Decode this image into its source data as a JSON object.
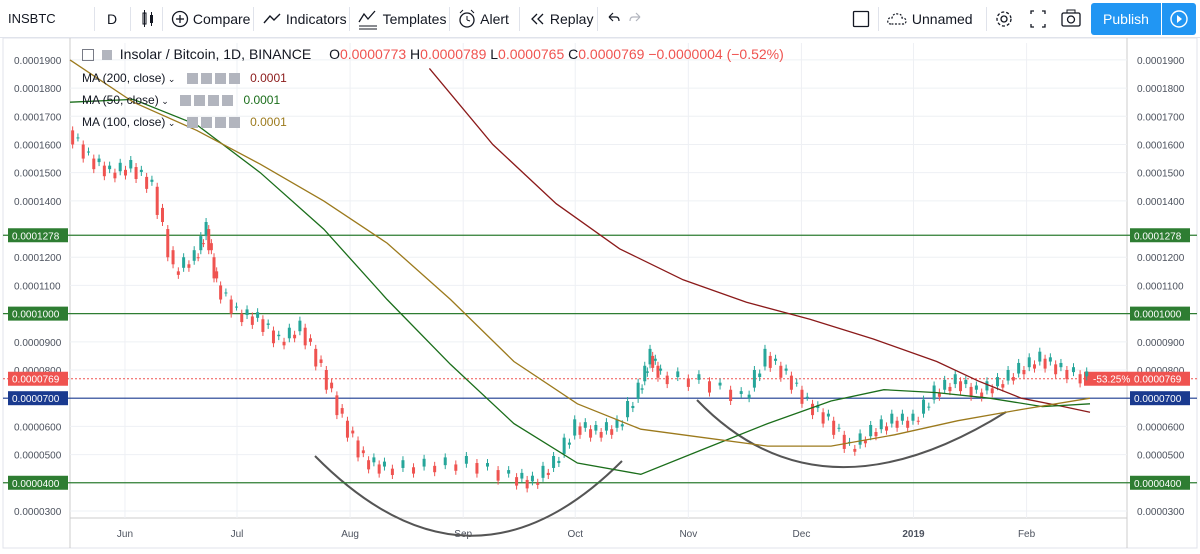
{
  "toolbar": {
    "symbol": "INSBTC",
    "interval": "D",
    "compare": "Compare",
    "indicators": "Indicators",
    "templates": "Templates",
    "alert": "Alert",
    "replay": "Replay",
    "layout_name": "Unnamed",
    "publish": "Publish"
  },
  "legend": {
    "title": "Insolar / Bitcoin, 1D, BINANCE",
    "open_label": "O",
    "open": "0.0000773",
    "high_label": "H",
    "high": "0.0000789",
    "low_label": "L",
    "low": "0.0000765",
    "close_label": "C",
    "close": "0.0000769",
    "change": "−0.0000004 (−0.52%)",
    "ma200": {
      "label": "MA (200, close)",
      "value": "0.0001",
      "color": "#8b1a1a"
    },
    "ma50": {
      "label": "MA (50, close)",
      "value": "0.0001",
      "color": "#1b6e1b"
    },
    "ma100": {
      "label": "MA (100, close)",
      "value": "0.0001",
      "color": "#9c7a1d"
    }
  },
  "colors": {
    "up": "#26a69a",
    "down": "#ef5350",
    "hline_green": "#2e7d32",
    "hline_blue": "#1a3a8f",
    "price_line": "#ef5350",
    "curve": "#555555"
  },
  "chart_data": {
    "type": "line",
    "instrument": "INSBTC",
    "y_ticks": [
      "0.0001900",
      "0.0001800",
      "0.0001700",
      "0.0001600",
      "0.0001500",
      "0.0001400",
      "0.0001200",
      "0.0001100",
      "0.0000900",
      "0.0000800",
      "0.0000600",
      "0.0000500",
      "0.0000300"
    ],
    "x_ticks": [
      "Jun",
      "Jul",
      "Aug",
      "Sep",
      "Oct",
      "Nov",
      "Dec",
      "2019",
      "Feb"
    ],
    "ylim": [
      2.75e-05,
      0.000196
    ],
    "horizontal_levels": [
      {
        "label": "0.0001278",
        "value": 0.0001278,
        "color": "#2e7d32"
      },
      {
        "label": "0.0001000",
        "value": 0.0001,
        "color": "#2e7d32"
      },
      {
        "label": "0.0000700",
        "value": 7e-05,
        "color": "#1a3a8f"
      },
      {
        "label": "0.0000400",
        "value": 4e-05,
        "color": "#2e7d32"
      }
    ],
    "last_price": {
      "label": "0.0000769",
      "value": 7.69e-05,
      "change_label": "-53.25%"
    },
    "series": [
      {
        "name": "MA (200, close)",
        "color": "#8b1a1a",
        "points": [
          [
            0.34,
            0.000187
          ],
          [
            0.4,
            0.00016
          ],
          [
            0.46,
            0.000139
          ],
          [
            0.52,
            0.000123
          ],
          [
            0.58,
            0.000112
          ],
          [
            0.64,
            0.000104
          ],
          [
            0.7,
            9.8e-05
          ],
          [
            0.76,
            9.1e-05
          ],
          [
            0.82,
            8.3e-05
          ],
          [
            0.86,
            7.6e-05
          ],
          [
            0.9,
            7e-05
          ],
          [
            0.94,
            6.7e-05
          ],
          [
            0.965,
            6.5e-05
          ]
        ]
      },
      {
        "name": "MA (50, close)",
        "color": "#1b6e1b",
        "points": [
          [
            0.0,
            0.000175
          ],
          [
            0.06,
            0.000176
          ],
          [
            0.12,
            0.000167
          ],
          [
            0.18,
            0.00015
          ],
          [
            0.24,
            0.00013
          ],
          [
            0.3,
            0.000105
          ],
          [
            0.36,
            8.2e-05
          ],
          [
            0.42,
            6.1e-05
          ],
          [
            0.48,
            4.7e-05
          ],
          [
            0.54,
            4.3e-05
          ],
          [
            0.6,
            5.2e-05
          ],
          [
            0.66,
            6.1e-05
          ],
          [
            0.72,
            6.9e-05
          ],
          [
            0.77,
            7.3e-05
          ],
          [
            0.82,
            7.2e-05
          ],
          [
            0.87,
            7e-05
          ],
          [
            0.92,
            6.7e-05
          ],
          [
            0.965,
            6.8e-05
          ]
        ]
      },
      {
        "name": "MA (100, close)",
        "color": "#9c7a1d",
        "points": [
          [
            0.0,
            0.00019
          ],
          [
            0.06,
            0.000175
          ],
          [
            0.12,
            0.000165
          ],
          [
            0.18,
            0.000153
          ],
          [
            0.24,
            0.00014
          ],
          [
            0.3,
            0.000125
          ],
          [
            0.36,
            0.000105
          ],
          [
            0.42,
            8.3e-05
          ],
          [
            0.48,
            6.8e-05
          ],
          [
            0.54,
            5.9e-05
          ],
          [
            0.6,
            5.6e-05
          ],
          [
            0.66,
            5.3e-05
          ],
          [
            0.72,
            5.3e-05
          ],
          [
            0.78,
            5.7e-05
          ],
          [
            0.84,
            6.2e-05
          ],
          [
            0.9,
            6.6e-05
          ],
          [
            0.965,
            7e-05
          ]
        ]
      }
    ],
    "price": [
      [
        0.0,
        0.000165
      ],
      [
        0.02,
        0.000155
      ],
      [
        0.04,
        0.00015
      ],
      [
        0.06,
        0.000152
      ],
      [
        0.08,
        0.000145
      ],
      [
        0.1,
        0.000115
      ],
      [
        0.12,
        0.00012
      ],
      [
        0.13,
        0.00013
      ],
      [
        0.14,
        0.00011
      ],
      [
        0.16,
        0.0001
      ],
      [
        0.18,
        9.8e-05
      ],
      [
        0.2,
        9e-05
      ],
      [
        0.22,
        9.5e-05
      ],
      [
        0.24,
        8e-05
      ],
      [
        0.26,
        6.2e-05
      ],
      [
        0.28,
        4.8e-05
      ],
      [
        0.3,
        4.5e-05
      ],
      [
        0.34,
        4.6e-05
      ],
      [
        0.38,
        4.7e-05
      ],
      [
        0.42,
        4.2e-05
      ],
      [
        0.44,
        4e-05
      ],
      [
        0.46,
        4.7e-05
      ],
      [
        0.48,
        6e-05
      ],
      [
        0.5,
        5.8e-05
      ],
      [
        0.52,
        6e-05
      ],
      [
        0.54,
        7.3e-05
      ],
      [
        0.55,
        8.5e-05
      ],
      [
        0.56,
        7.8e-05
      ],
      [
        0.6,
        7.6e-05
      ],
      [
        0.64,
        7e-05
      ],
      [
        0.66,
        8.5e-05
      ],
      [
        0.68,
        7.8e-05
      ],
      [
        0.7,
        6.8e-05
      ],
      [
        0.72,
        6.2e-05
      ],
      [
        0.74,
        5.2e-05
      ],
      [
        0.76,
        5.8e-05
      ],
      [
        0.78,
        6.2e-05
      ],
      [
        0.8,
        6.2e-05
      ],
      [
        0.82,
        7.2e-05
      ],
      [
        0.84,
        7.6e-05
      ],
      [
        0.86,
        7.2e-05
      ],
      [
        0.88,
        7.5e-05
      ],
      [
        0.9,
        8e-05
      ],
      [
        0.92,
        8.4e-05
      ],
      [
        0.94,
        8e-05
      ],
      [
        0.965,
        7.7e-05
      ]
    ]
  }
}
